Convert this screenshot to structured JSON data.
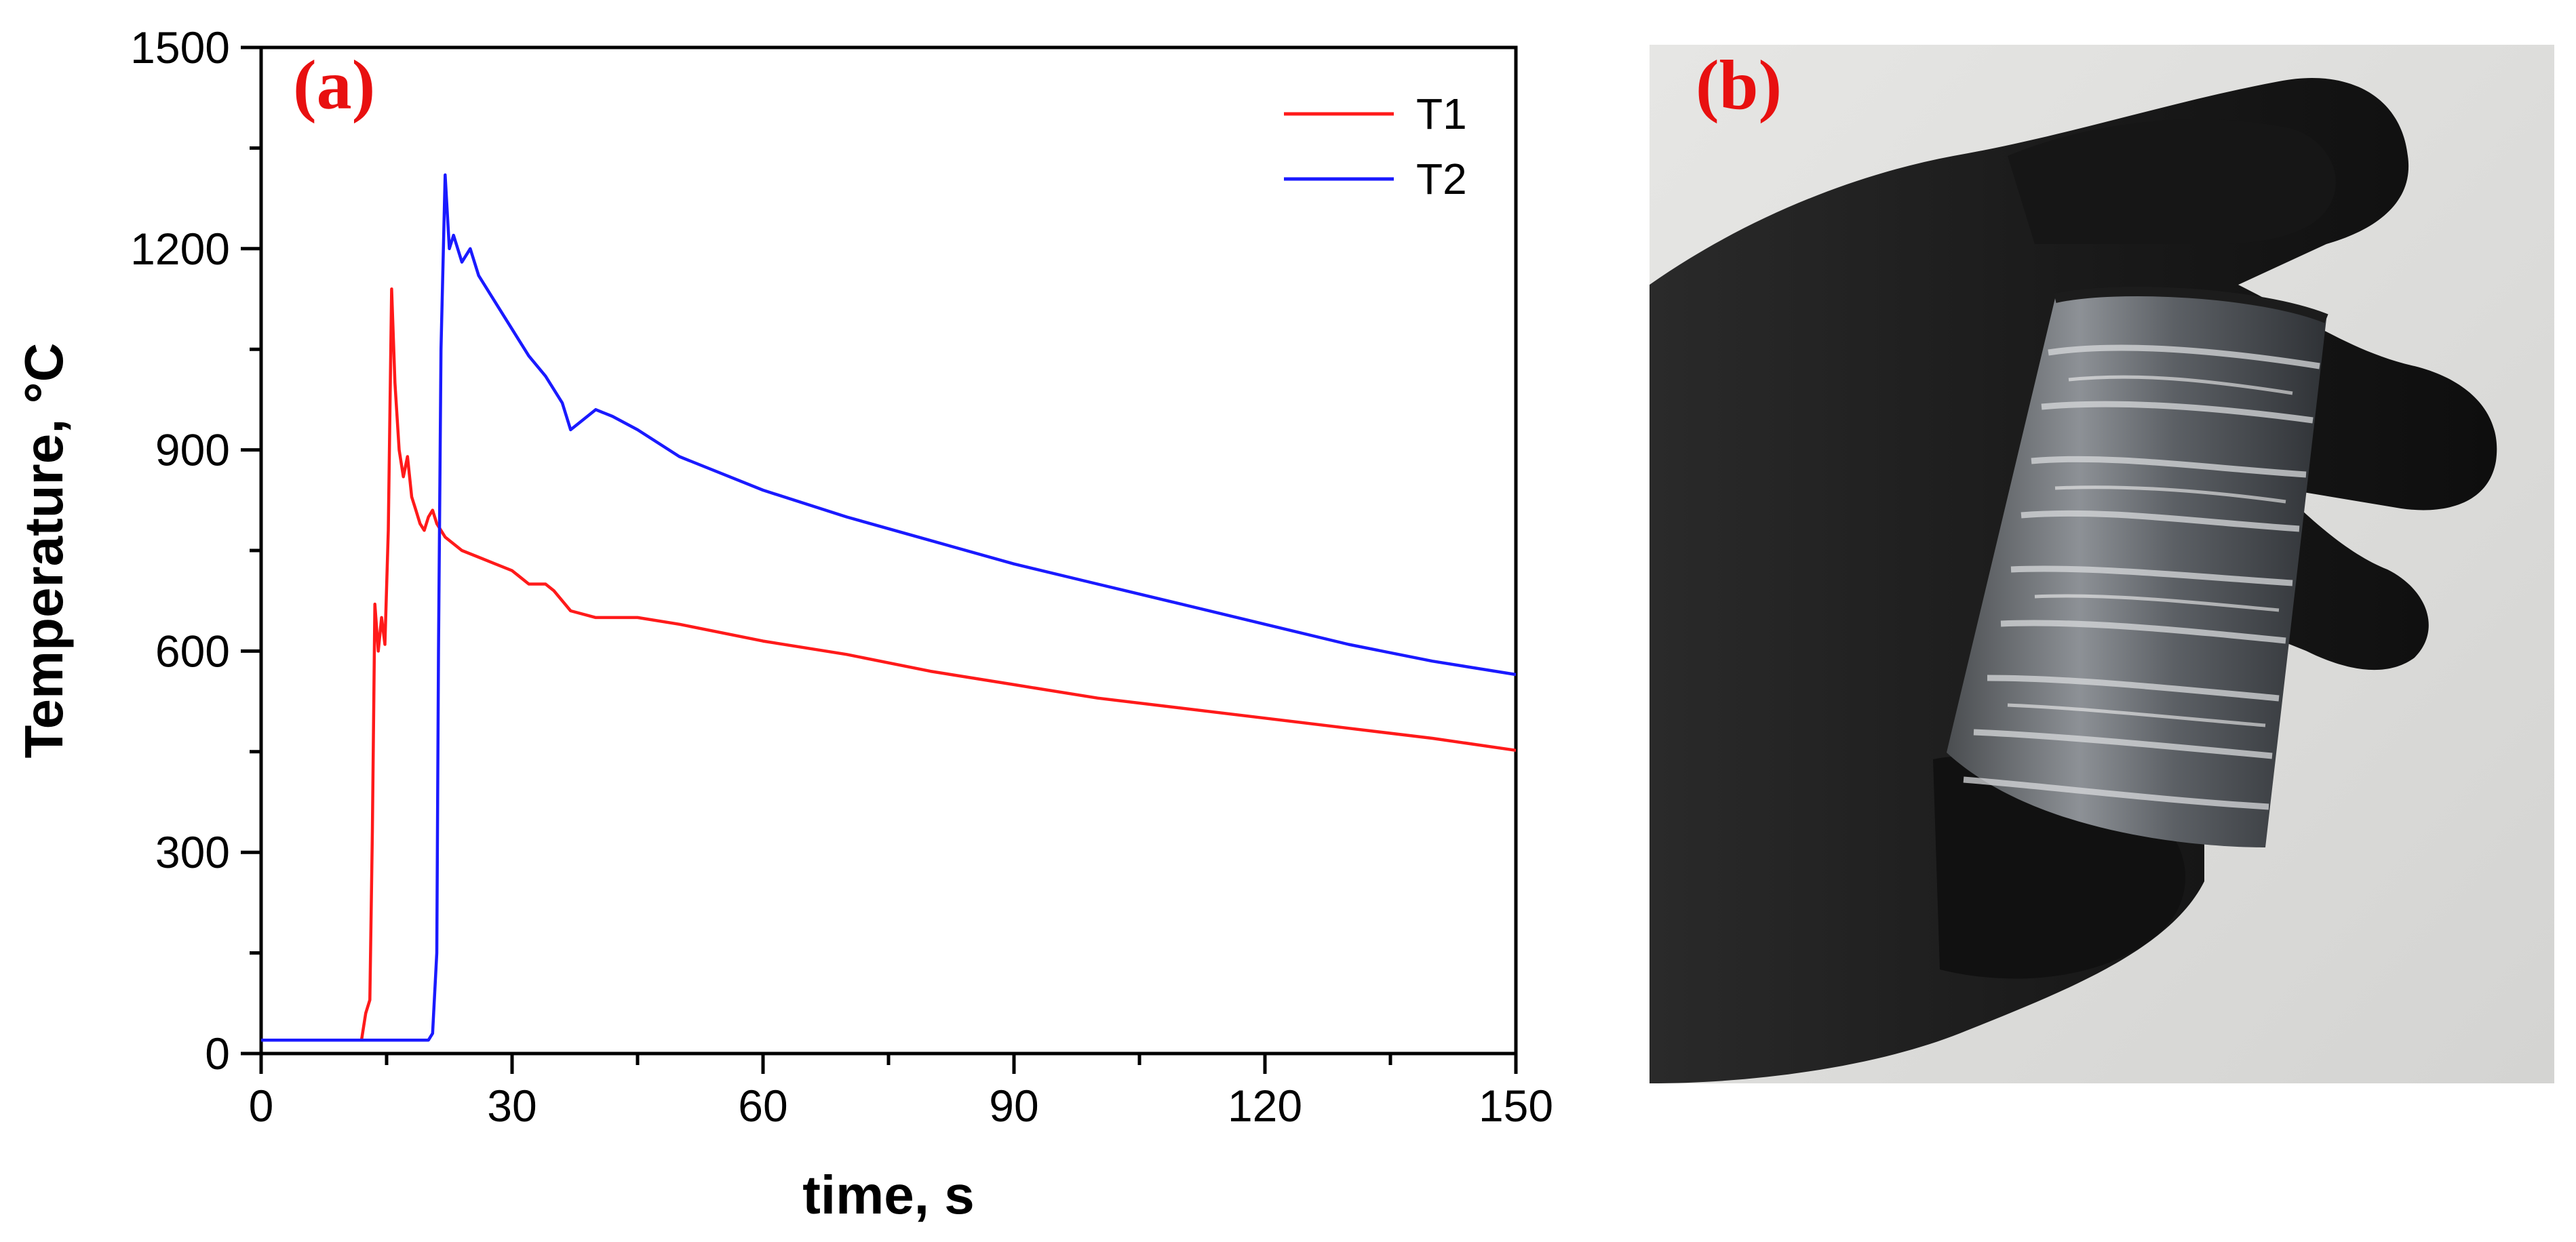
{
  "panels": {
    "a": {
      "label": "(a)"
    },
    "b": {
      "label": "(b)"
    }
  },
  "colors": {
    "panel_label": "#e81010",
    "t1": "#ff1a1a",
    "t2": "#1a1aff"
  },
  "photo": {
    "description_icon": "gloved-hand-holding-specimen-icon"
  },
  "chart_data": {
    "type": "line",
    "title": "",
    "xlabel": "time, s",
    "ylabel": "Temperature, °C",
    "xlim": [
      0,
      150
    ],
    "ylim": [
      0,
      1500
    ],
    "xticks": [
      0,
      30,
      60,
      90,
      120,
      150
    ],
    "yticks": [
      0,
      300,
      600,
      900,
      1200,
      1500
    ],
    "grid": false,
    "legend_position": "top-right",
    "series": [
      {
        "name": "T1",
        "color": "#ff1a1a",
        "x": [
          0,
          12,
          12.5,
          13,
          13.3,
          13.6,
          14,
          14.4,
          14.8,
          15.2,
          15.6,
          16,
          16.5,
          17,
          17.5,
          18,
          18.5,
          19,
          19.5,
          20,
          20.5,
          21,
          22,
          24,
          26,
          28,
          30,
          32,
          34,
          35,
          37,
          40,
          45,
          50,
          60,
          70,
          80,
          90,
          100,
          110,
          120,
          130,
          140,
          150
        ],
        "y": [
          20,
          20,
          60,
          80,
          330,
          670,
          600,
          650,
          610,
          780,
          1140,
          1000,
          900,
          860,
          890,
          830,
          810,
          790,
          780,
          800,
          810,
          790,
          770,
          750,
          740,
          730,
          720,
          700,
          700,
          690,
          660,
          650,
          650,
          640,
          615,
          595,
          570,
          550,
          530,
          515,
          500,
          485,
          470,
          452
        ]
      },
      {
        "name": "T2",
        "color": "#1a1aff",
        "x": [
          0,
          20,
          20.5,
          21,
          21.2,
          21.5,
          22,
          22.5,
          23,
          24,
          25,
          26,
          28,
          30,
          32,
          34,
          36,
          37,
          38,
          40,
          42,
          45,
          50,
          60,
          70,
          80,
          90,
          100,
          110,
          120,
          130,
          140,
          150
        ],
        "y": [
          20,
          20,
          30,
          150,
          600,
          1050,
          1310,
          1200,
          1220,
          1180,
          1200,
          1160,
          1120,
          1080,
          1040,
          1010,
          970,
          930,
          940,
          960,
          950,
          930,
          890,
          840,
          800,
          765,
          730,
          700,
          670,
          640,
          610,
          585,
          565
        ]
      }
    ]
  }
}
